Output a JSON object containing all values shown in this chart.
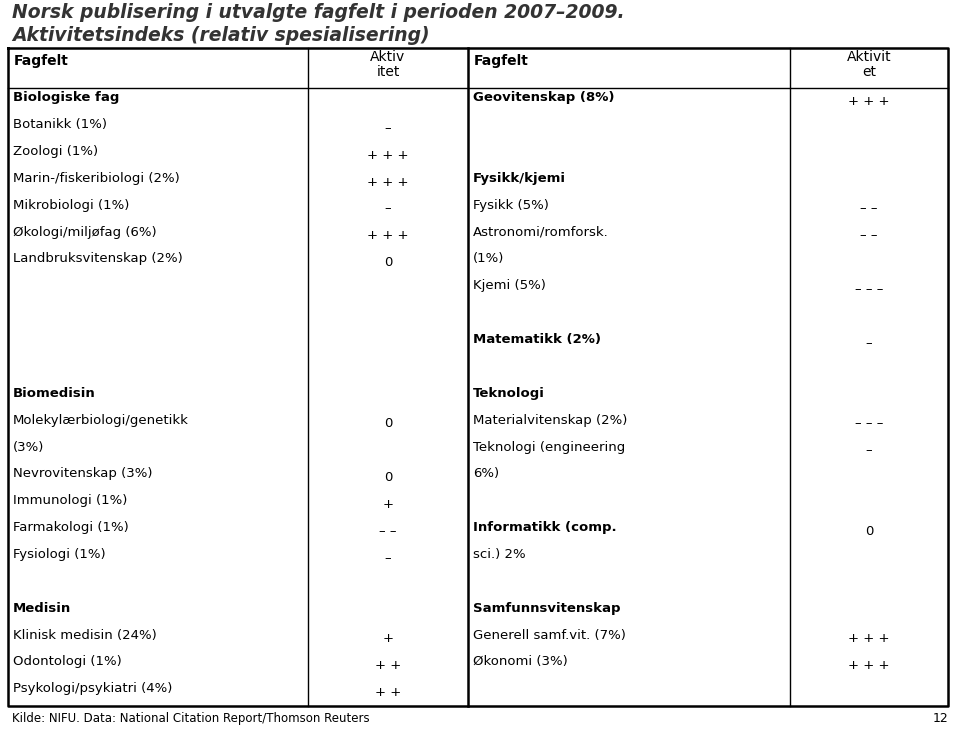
{
  "title_line1": "Norsk publisering i utvalgte fagfelt i perioden 2007–2009.",
  "title_line2": "Aktivitetsindeks (relativ spesialisering)",
  "footer": "Kilde: NIFU. Data: National Citation Report/Thomson Reuters",
  "page_number": "12",
  "left_rows": [
    {
      "style": "bold",
      "label": "Biologiske fag",
      "value": ""
    },
    {
      "style": "normal",
      "label": "Botanikk (1%)",
      "value": "–"
    },
    {
      "style": "normal",
      "label": "Zoologi (1%)",
      "value": "+ + +"
    },
    {
      "style": "normal",
      "label": "Marin-/fiskeribiologi (2%)",
      "value": "+ + +"
    },
    {
      "style": "normal",
      "label": "Mikrobiologi (1%)",
      "value": "–"
    },
    {
      "style": "normal",
      "label": "Økologi/miljøfag (6%)",
      "value": "+ + +"
    },
    {
      "style": "normal",
      "label": "Landbruksvitenskap (2%)",
      "value": "0"
    },
    {
      "style": "empty",
      "label": "",
      "value": ""
    },
    {
      "style": "empty",
      "label": "",
      "value": ""
    },
    {
      "style": "empty",
      "label": "",
      "value": ""
    },
    {
      "style": "empty",
      "label": "",
      "value": ""
    },
    {
      "style": "bold",
      "label": "Biomedisin",
      "value": ""
    },
    {
      "style": "normal2",
      "label": "Molekylærbiologi/genetikk",
      "value": "0"
    },
    {
      "style": "normal2cont",
      "label": "(3%)",
      "value": ""
    },
    {
      "style": "normal",
      "label": "Nevrovitenskap (3%)",
      "value": "0"
    },
    {
      "style": "normal",
      "label": "Immunologi (1%)",
      "value": "+"
    },
    {
      "style": "normal",
      "label": "Farmakologi (1%)",
      "value": "– –"
    },
    {
      "style": "normal",
      "label": "Fysiologi (1%)",
      "value": "–"
    },
    {
      "style": "empty",
      "label": "",
      "value": ""
    },
    {
      "style": "bold",
      "label": "Medisin",
      "value": ""
    },
    {
      "style": "normal",
      "label": "Klinisk medisin (24%)",
      "value": "+"
    },
    {
      "style": "normal",
      "label": "Odontologi (1%)",
      "value": "+ +"
    },
    {
      "style": "normal",
      "label": "Psykologi/psykiatri (4%)",
      "value": "+ +"
    }
  ],
  "right_rows": [
    {
      "style": "bold",
      "label": "Geovitenskap (8%)",
      "value": "+ + +"
    },
    {
      "style": "empty",
      "label": "",
      "value": ""
    },
    {
      "style": "empty",
      "label": "",
      "value": ""
    },
    {
      "style": "bold",
      "label": "Fysikk/kjemi",
      "value": ""
    },
    {
      "style": "normal",
      "label": "Fysikk (5%)",
      "value": "– –"
    },
    {
      "style": "normal",
      "label": "Astronomi/romforsk.",
      "value": "– –"
    },
    {
      "style": "normal2cont",
      "label": "(1%)",
      "value": ""
    },
    {
      "style": "normal",
      "label": "Kjemi (5%)",
      "value": "– – –"
    },
    {
      "style": "empty",
      "label": "",
      "value": ""
    },
    {
      "style": "bold",
      "label": "Matematikk (2%)",
      "value": "–"
    },
    {
      "style": "empty",
      "label": "",
      "value": ""
    },
    {
      "style": "bold",
      "label": "Teknologi",
      "value": ""
    },
    {
      "style": "normal",
      "label": "Materialvitenskap (2%)",
      "value": "– – –"
    },
    {
      "style": "normal",
      "label": "Teknologi (engineering",
      "value": "–"
    },
    {
      "style": "normal2cont",
      "label": "6%)",
      "value": ""
    },
    {
      "style": "empty",
      "label": "",
      "value": ""
    },
    {
      "style": "bold2",
      "label": "Informatikk (comp.",
      "value": "0"
    },
    {
      "style": "bold2cont",
      "label": "sci.) 2%",
      "value": ""
    },
    {
      "style": "empty",
      "label": "",
      "value": ""
    },
    {
      "style": "bold",
      "label": "Samfunnsvitenskap",
      "value": ""
    },
    {
      "style": "normal",
      "label": "Generell samf.vit. (7%)",
      "value": "+ + +"
    },
    {
      "style": "normal",
      "label": "Økonomi (3%)",
      "value": "+ + +"
    },
    {
      "style": "empty",
      "label": "",
      "value": ""
    }
  ]
}
